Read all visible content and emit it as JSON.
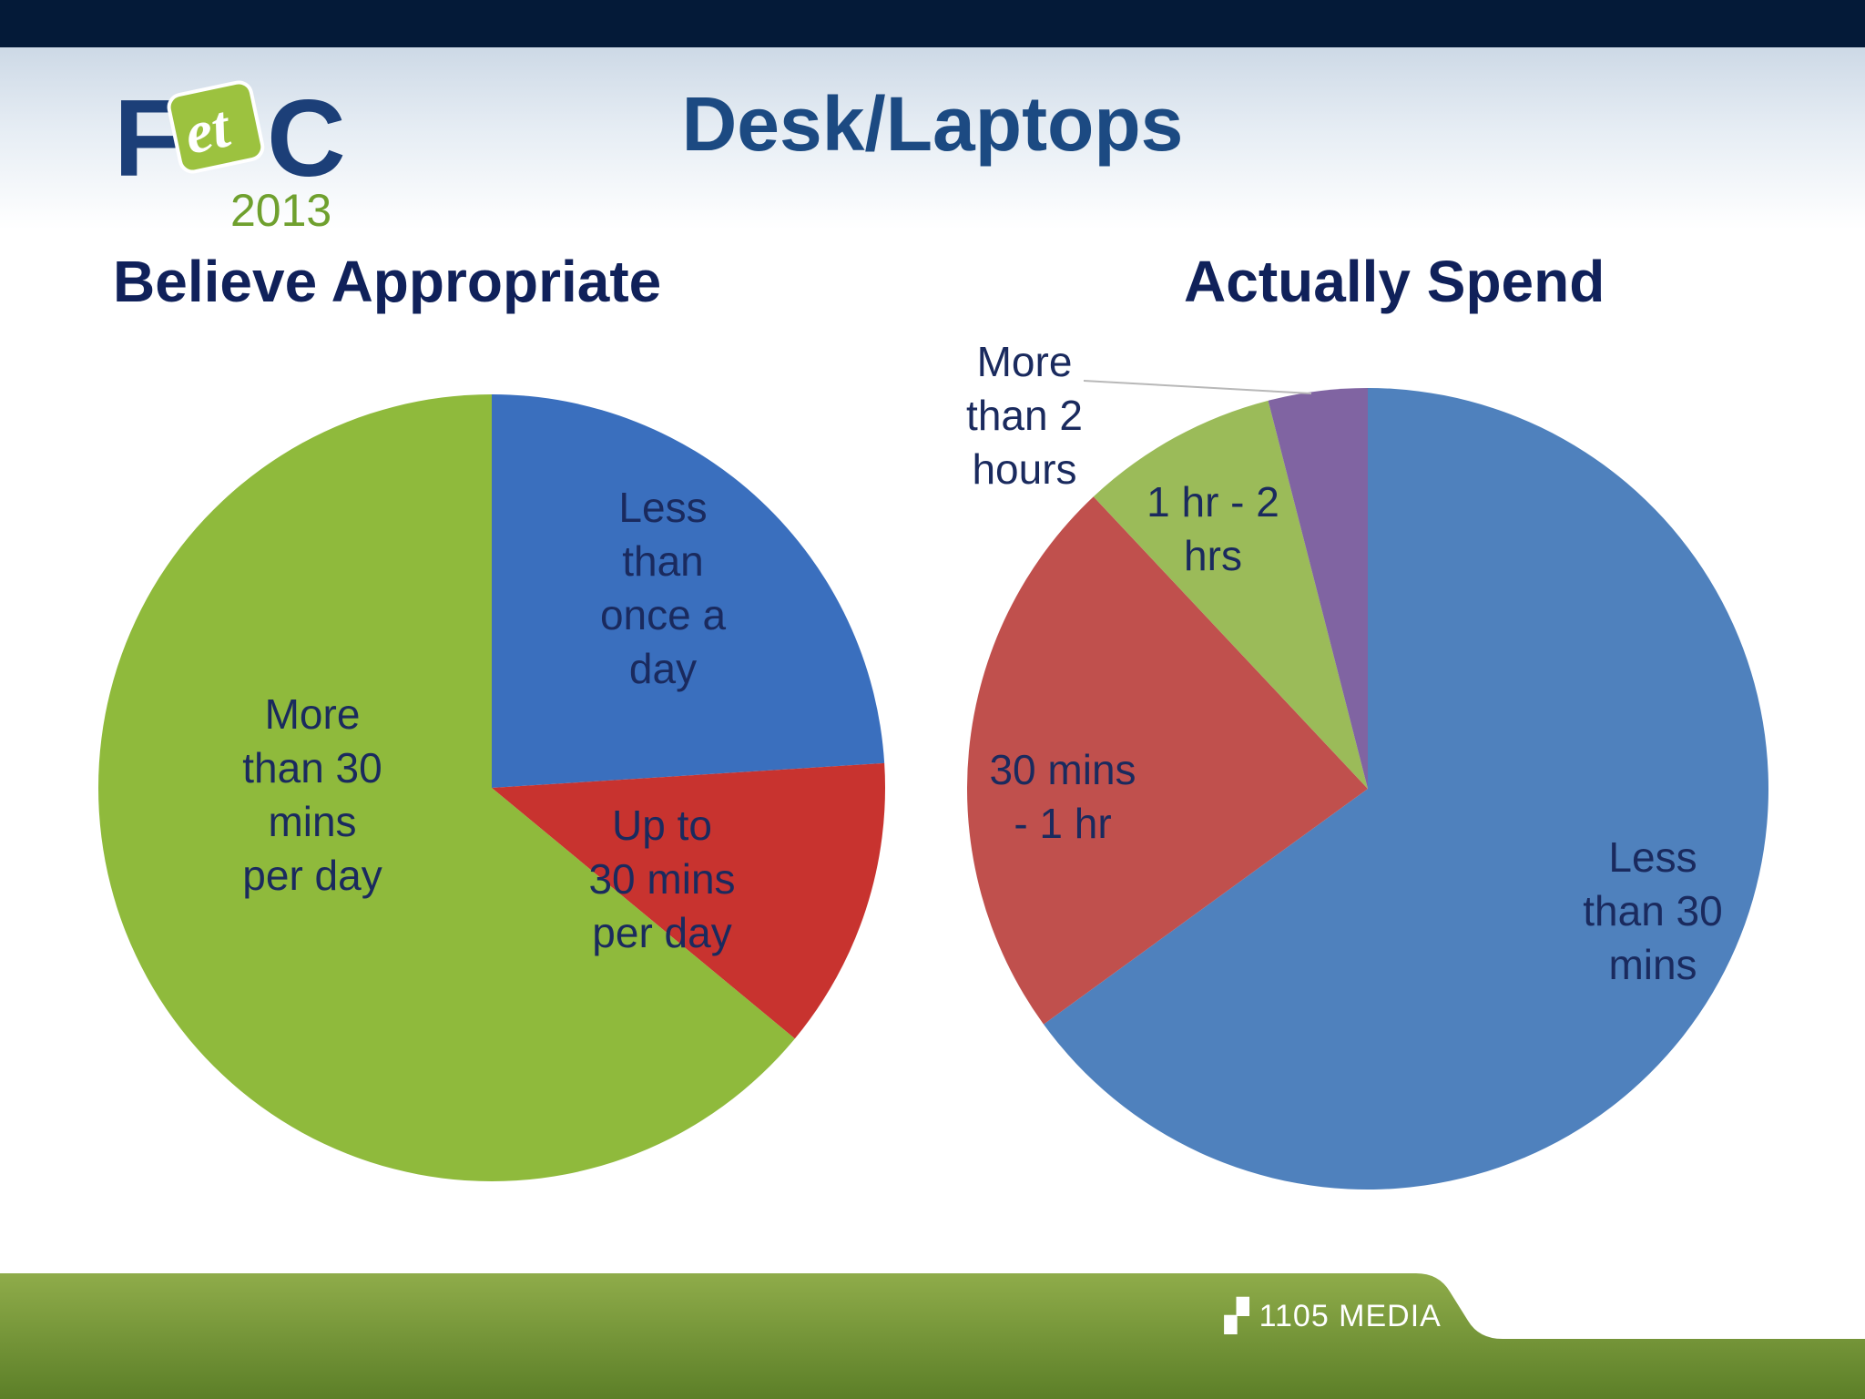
{
  "slide": {
    "title": "Desk/Laptops",
    "logo": {
      "left_text": "F",
      "middle_text": "et",
      "right_text": "C",
      "year": "2013"
    },
    "footer_brand": "1105 MEDIA"
  },
  "colors": {
    "top_bar": "#041a38",
    "title": "#1c4a82",
    "chart_title": "#10215a",
    "blue": "#4f81bd",
    "red": "#c0504d",
    "green": "#9bbb59",
    "purple": "#8064a2",
    "footer_green": "#7a9a3a"
  },
  "chart_data": [
    {
      "type": "pie",
      "title": "Believe Appropriate",
      "categories": [
        "Less than once a day",
        "Up to 30 mins per day",
        "More than 30 mins per day"
      ],
      "values": [
        24,
        12,
        64
      ],
      "slice_colors": [
        "#3a6fbe",
        "#c8332f",
        "#8fba3c"
      ],
      "labels": [
        [
          "Less",
          "than",
          "once a",
          "day"
        ],
        [
          "Up to",
          "30 mins",
          "per day"
        ],
        [
          "More",
          "than 30",
          "mins",
          "per day"
        ]
      ]
    },
    {
      "type": "pie",
      "title": "Actually Spend",
      "categories": [
        "Less than 30 mins",
        "30 mins - 1 hr",
        "1 hr - 2 hrs",
        "More than 2 hours"
      ],
      "values": [
        65,
        23,
        8,
        4
      ],
      "slice_colors": [
        "#4f81bd",
        "#c0504d",
        "#9bbb59",
        "#8064a2"
      ],
      "labels": [
        [
          "Less",
          "than 30",
          "mins"
        ],
        [
          "30 mins",
          "- 1 hr"
        ],
        [
          "1 hr - 2",
          "hrs"
        ],
        [
          "More",
          "than 2",
          "hours"
        ]
      ]
    }
  ]
}
